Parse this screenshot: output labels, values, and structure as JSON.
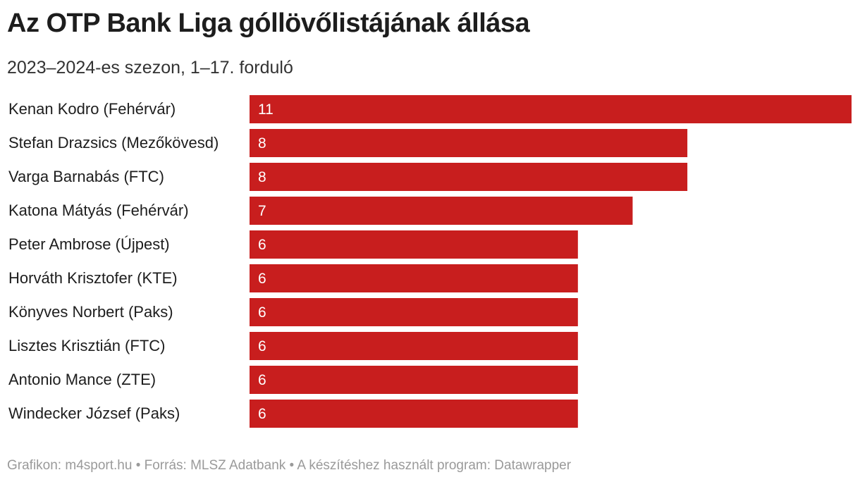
{
  "header": {
    "title": "Az OTP Bank Liga góllövőlistájának állása",
    "subtitle": "2023–2024-es szezon, 1–17. forduló"
  },
  "footer": {
    "source": "Grafikon: m4sport.hu • Forrás: MLSZ Adatbank • A készítéshez használt program: Datawrapper"
  },
  "colors": {
    "bar": "#c81e1e",
    "label": "#1d1d1d",
    "value": "#ffffff",
    "footer": "#9a9a9a"
  },
  "chart_data": {
    "type": "bar",
    "orientation": "horizontal",
    "title": "Az OTP Bank Liga góllövőlistájának állása",
    "subtitle": "2023–2024-es szezon, 1–17. forduló",
    "categories": [
      "Kenan Kodro (Fehérvár)",
      "Stefan Drazsics (Mezőkövesd)",
      "Varga Barnabás (FTC)",
      "Katona Mátyás (Fehérvár)",
      "Peter Ambrose (Újpest)",
      "Horváth Krisztofer (KTE)",
      "Könyves Norbert (Paks)",
      "Lisztes Krisztián (FTC)",
      "Antonio Mance (ZTE)",
      "Windecker József (Paks)"
    ],
    "values": [
      11,
      8,
      8,
      7,
      6,
      6,
      6,
      6,
      6,
      6
    ],
    "xlim": [
      0,
      11
    ],
    "xlabel": "",
    "ylabel": "",
    "grid": false
  }
}
